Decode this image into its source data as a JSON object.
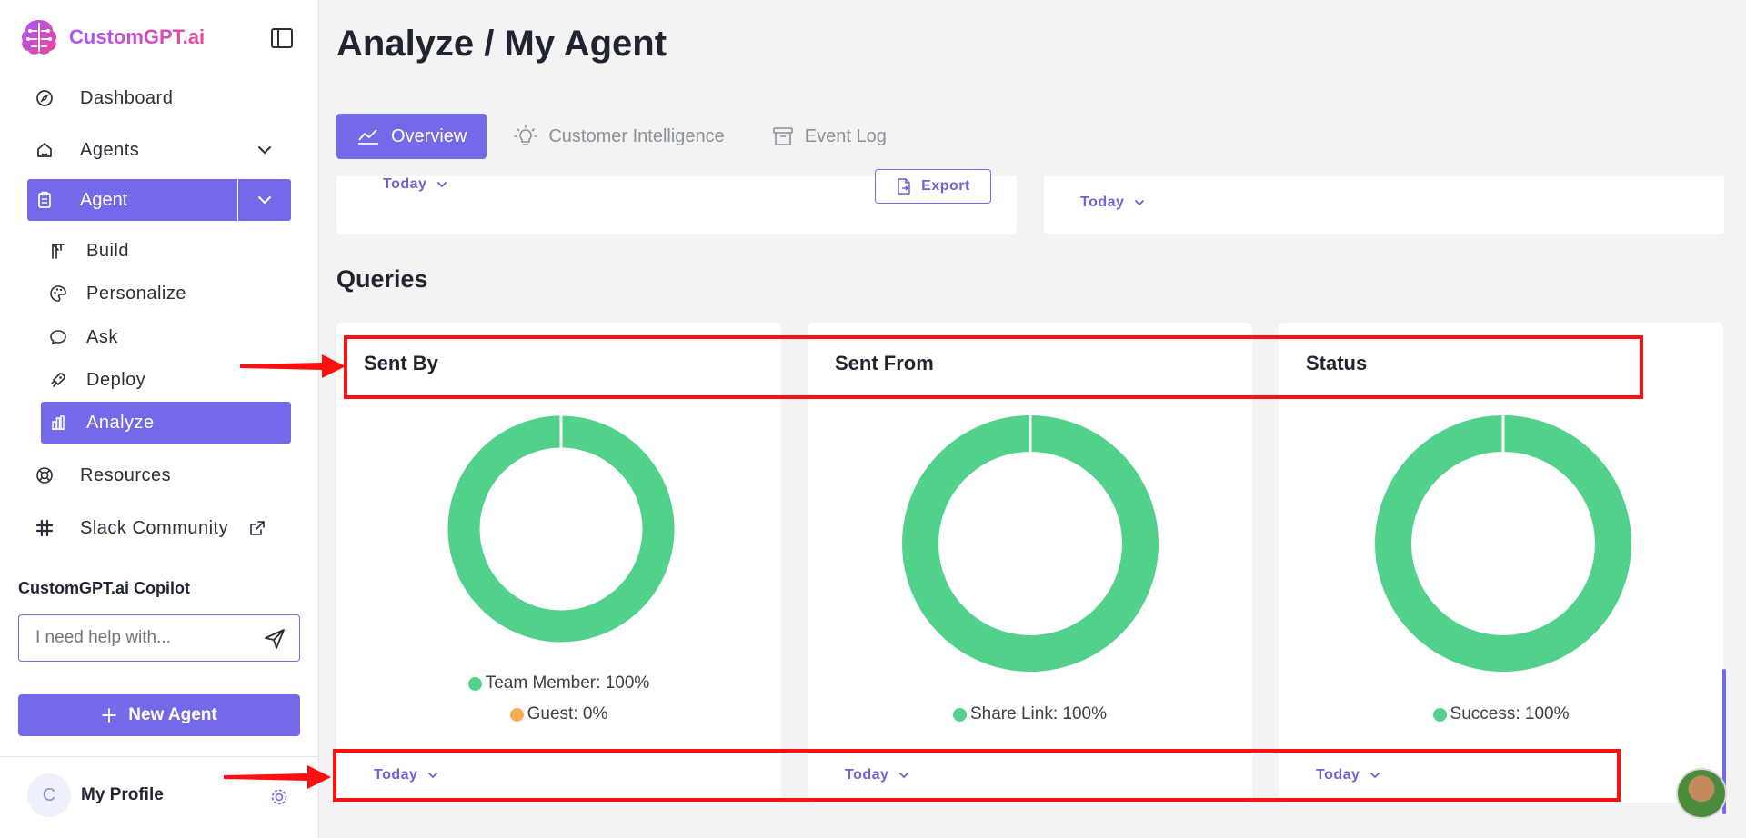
{
  "brand": {
    "name": "CustomGPT.ai"
  },
  "sidebar": {
    "items": [
      {
        "label": "Dashboard",
        "icon": "compass-icon"
      },
      {
        "label": "Agents",
        "icon": "home-icon"
      },
      {
        "label": "Agent",
        "icon": "clipboard-icon"
      },
      {
        "label": "Build",
        "icon": "crane-icon"
      },
      {
        "label": "Personalize",
        "icon": "palette-icon"
      },
      {
        "label": "Ask",
        "icon": "chat-icon"
      },
      {
        "label": "Deploy",
        "icon": "rocket-icon"
      },
      {
        "label": "Analyze",
        "icon": "bar-chart-icon"
      },
      {
        "label": "Resources",
        "icon": "lifebuoy-icon"
      },
      {
        "label": "Slack Community",
        "icon": "slack-icon"
      }
    ]
  },
  "copilot": {
    "title": "CustomGPT.ai Copilot",
    "placeholder": "I need help with..."
  },
  "new_agent": {
    "label": "New Agent"
  },
  "profile": {
    "initial": "C",
    "name": "My Profile"
  },
  "header": {
    "title": "Analyze / My Agent"
  },
  "tabs": [
    {
      "label": "Overview",
      "icon": "line-chart-icon"
    },
    {
      "label": "Customer Intelligence",
      "icon": "lightbulb-icon"
    },
    {
      "label": "Event Log",
      "icon": "archive-icon"
    }
  ],
  "top_cards": {
    "left_today": "Today",
    "export_label": "Export",
    "right_today": "Today"
  },
  "queries": {
    "title": "Queries",
    "cards": [
      {
        "title": "Sent By",
        "legend": [
          {
            "label": "Team Member: 100%",
            "color": "#52d18b"
          },
          {
            "label": "Guest: 0%",
            "color": "#f6ad55"
          }
        ],
        "today": "Today"
      },
      {
        "title": "Sent From",
        "legend": [
          {
            "label": "Share Link: 100%",
            "color": "#52d18b"
          }
        ],
        "today": "Today"
      },
      {
        "title": "Status",
        "legend": [
          {
            "label": "Success: 100%",
            "color": "#52d18b"
          }
        ],
        "today": "Today"
      }
    ]
  },
  "chart_data": [
    {
      "type": "pie",
      "categories": [
        "Team Member",
        "Guest"
      ],
      "values": [
        100,
        0
      ]
    },
    {
      "type": "pie",
      "categories": [
        "Share Link"
      ],
      "values": [
        100
      ]
    },
    {
      "type": "pie",
      "categories": [
        "Success"
      ],
      "values": [
        100
      ]
    }
  ],
  "colors": {
    "accent": "#7469e8",
    "donut_green": "#52d18b",
    "annotation_red": "#ff1010"
  }
}
